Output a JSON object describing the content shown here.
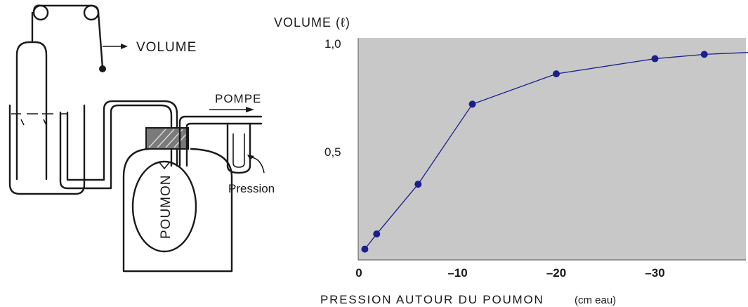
{
  "apparatus": {
    "volume_label": "VOLUME",
    "pompe_label": "POMPE",
    "pression_label": "Pression",
    "poumon_label": "POUMON"
  },
  "chart_data": {
    "type": "line",
    "title": "",
    "ylabel": "VOLUME (ℓ)",
    "xlabel": "PRESSION AUTOUR DU POUMON",
    "xunit": "(cm eau)",
    "x_tick_labels": [
      "0",
      "–10",
      "–20",
      "–30"
    ],
    "x_ticks": [
      0,
      -10,
      -20,
      -30
    ],
    "y_tick_labels": [
      "0,5",
      "1,0"
    ],
    "y_ticks": [
      0.5,
      1.0
    ],
    "xlim": [
      0,
      -40
    ],
    "ylim": [
      0,
      1.0
    ],
    "grid": false,
    "background": "#c8c8c8",
    "series": [
      {
        "color": "#1a1f8c",
        "x": [
          -0.6,
          -1.8,
          -6,
          -11.5,
          -20,
          -30,
          -35,
          -40
        ],
        "y": [
          0.05,
          0.12,
          0.35,
          0.72,
          0.86,
          0.93,
          0.95,
          0.96
        ]
      }
    ]
  }
}
